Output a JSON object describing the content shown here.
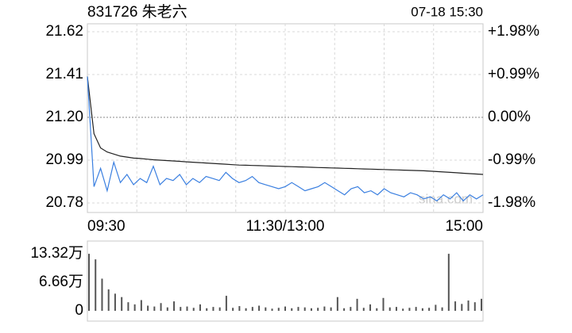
{
  "chart_data": [
    {
      "type": "line",
      "title": "831726 朱老六",
      "timestamp": "07-18 15:30",
      "watermark": "sina.com",
      "up_color": "#e00000",
      "down_color": "#0a9a0a",
      "grid": true,
      "x": [
        0,
        4,
        8,
        12,
        16,
        20,
        24,
        28,
        32,
        36,
        40,
        44,
        48,
        52,
        56,
        60,
        64,
        68,
        72,
        76,
        80,
        84,
        88,
        92,
        96,
        100,
        104,
        108,
        112,
        116,
        120,
        124,
        128,
        132,
        136,
        140,
        144,
        148,
        152,
        156,
        160,
        164,
        168,
        172,
        176,
        180,
        184,
        188,
        192,
        196,
        200,
        204,
        208,
        212,
        216,
        220,
        224,
        228,
        232,
        236,
        240
      ],
      "xlim": [
        0,
        240
      ],
      "xticks": [
        {
          "value": 0,
          "label": "09:30"
        },
        {
          "value": 120,
          "label": "11:30/13:00"
        },
        {
          "value": 240,
          "label": "15:00"
        }
      ],
      "ylim": [
        20.78,
        21.62
      ],
      "yticks": [
        21.62,
        21.41,
        {
          "value": 21.2,
          "label": "21.20"
        },
        20.99,
        20.78
      ],
      "y2lim": [
        -1.98,
        1.98
      ],
      "y2ticks": [
        {
          "value": 1.98,
          "label": "+1.98%"
        },
        {
          "value": 0.99,
          "label": "+0.99%"
        },
        {
          "value": 0,
          "label": "0.00%"
        },
        {
          "value": -0.99,
          "label": "-0.99%"
        },
        {
          "value": -1.98,
          "label": "-1.98%"
        }
      ],
      "series": [
        {
          "color": "#3a7fe0",
          "values": [
            21.4,
            20.86,
            20.95,
            20.84,
            20.98,
            20.88,
            20.92,
            20.87,
            20.9,
            20.88,
            20.96,
            20.87,
            20.9,
            20.89,
            20.92,
            20.87,
            20.9,
            20.88,
            20.91,
            20.9,
            20.89,
            20.93,
            20.9,
            20.88,
            20.89,
            20.91,
            20.88,
            20.87,
            20.86,
            20.85,
            20.86,
            20.88,
            20.86,
            20.84,
            20.85,
            20.86,
            20.88,
            20.86,
            20.84,
            20.82,
            20.85,
            20.86,
            20.83,
            20.84,
            20.82,
            20.85,
            20.83,
            20.82,
            20.81,
            20.83,
            20.82,
            20.8,
            20.81,
            20.79,
            20.82,
            20.8,
            20.83,
            20.79,
            20.82,
            20.8,
            20.82
          ]
        },
        {
          "color": "#222222",
          "values": [
            21.4,
            21.12,
            21.05,
            21.03,
            21.02,
            21.01,
            21.005,
            21.0,
            20.998,
            20.995,
            20.992,
            20.99,
            20.988,
            20.986,
            20.984,
            20.982,
            20.98,
            20.978,
            20.976,
            20.974,
            20.972,
            20.97,
            20.968,
            20.966,
            20.965,
            20.964,
            20.963,
            20.962,
            20.961,
            20.96,
            20.959,
            20.958,
            20.957,
            20.956,
            20.955,
            20.954,
            20.953,
            20.952,
            20.951,
            20.95,
            20.949,
            20.948,
            20.947,
            20.946,
            20.945,
            20.944,
            20.943,
            20.942,
            20.941,
            20.94,
            20.939,
            20.938,
            20.936,
            20.934,
            20.932,
            20.93,
            20.928,
            20.926,
            20.924,
            20.922,
            20.92
          ]
        }
      ]
    },
    {
      "type": "bar",
      "color": "#555555",
      "x": [
        0,
        4,
        8,
        12,
        16,
        20,
        24,
        28,
        32,
        36,
        40,
        44,
        48,
        52,
        56,
        60,
        64,
        68,
        72,
        76,
        80,
        84,
        88,
        92,
        96,
        100,
        104,
        108,
        112,
        116,
        120,
        124,
        128,
        132,
        136,
        140,
        144,
        148,
        152,
        156,
        160,
        164,
        168,
        172,
        176,
        180,
        184,
        188,
        192,
        196,
        200,
        204,
        208,
        212,
        216,
        220,
        224,
        228,
        232,
        236,
        240
      ],
      "xlim": [
        0,
        240
      ],
      "values": [
        13.3,
        12.0,
        7.5,
        5.0,
        4.0,
        3.2,
        2.0,
        1.5,
        2.5,
        1.2,
        1.0,
        1.8,
        0.8,
        2.2,
        0.9,
        1.0,
        0.7,
        1.5,
        0.6,
        0.9,
        0.8,
        3.5,
        0.7,
        1.1,
        0.6,
        0.9,
        1.2,
        0.8,
        0.5,
        0.7,
        1.0,
        0.6,
        0.9,
        0.8,
        0.6,
        0.7,
        1.0,
        0.8,
        3.2,
        0.6,
        0.9,
        2.8,
        0.7,
        1.5,
        0.6,
        3.0,
        0.8,
        0.9,
        0.5,
        0.7,
        0.9,
        0.6,
        0.7,
        1.4,
        0.8,
        13.3,
        2.2,
        1.6,
        2.4,
        2.0,
        2.8
      ],
      "ylim": [
        0,
        13.32
      ],
      "yticks": [
        {
          "value": 13.32,
          "label": "13.32万"
        },
        {
          "value": 6.66,
          "label": "6.66万"
        },
        0
      ]
    }
  ]
}
